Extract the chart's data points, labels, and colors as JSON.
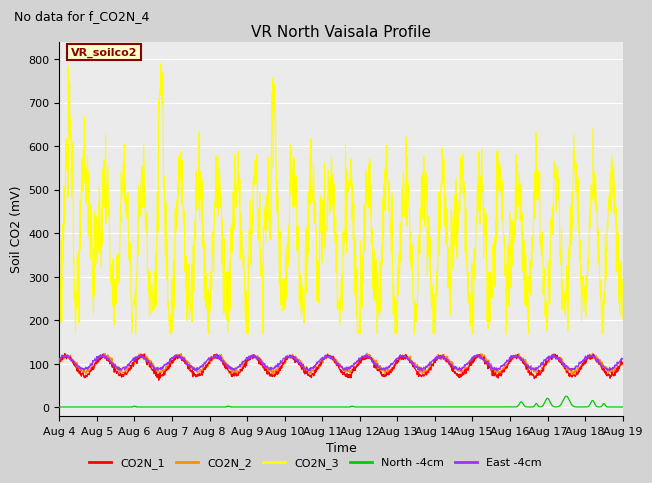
{
  "title": "VR North Vaisala Profile",
  "subtitle": "No data for f_CO2N_4",
  "ylabel": "Soil CO2 (mV)",
  "xlabel": "Time",
  "ylim": [
    -20,
    840
  ],
  "yticks": [
    0,
    100,
    200,
    300,
    400,
    500,
    600,
    700,
    800
  ],
  "legend_label": "VR_soilco2",
  "legend_label_color": "#8B0000",
  "legend_box_facecolor": "#FFFFCC",
  "legend_box_edgecolor": "#8B0000",
  "fig_facecolor": "#D3D3D3",
  "plot_facecolor": "#EBEBEB",
  "series_colors": {
    "CO2N_1": "#FF0000",
    "CO2N_2": "#FF8C00",
    "CO2N_3": "#FFFF00",
    "North_4cm": "#00CC00",
    "East_4cm": "#9933FF"
  },
  "n_days": 15,
  "x_tick_labels": [
    "Aug 4",
    "Aug 5",
    "Aug 6",
    "Aug 7",
    "Aug 8",
    "Aug 9",
    "Aug 10",
    "Aug 11",
    "Aug 12",
    "Aug 13",
    "Aug 14",
    "Aug 15",
    "Aug 16",
    "Aug 17",
    "Aug 18",
    "Aug 19"
  ],
  "title_fontsize": 11,
  "subtitle_fontsize": 9,
  "axis_label_fontsize": 9,
  "tick_fontsize": 8,
  "legend_fontsize": 8
}
